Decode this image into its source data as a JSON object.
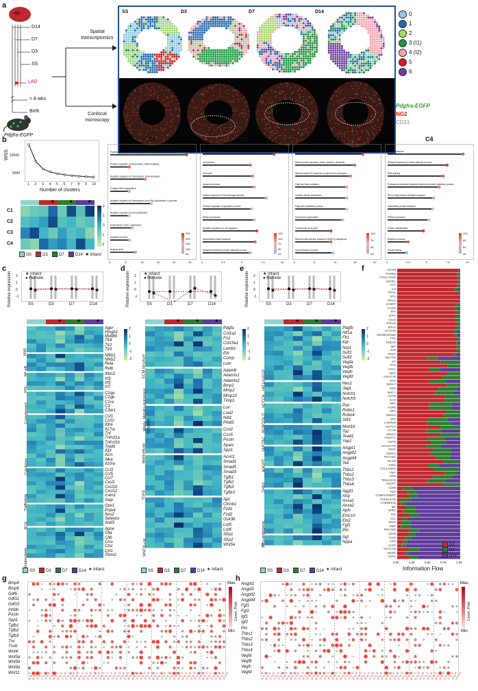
{
  "panel_letters": {
    "a": "a",
    "b": "b",
    "c": "c",
    "d": "d",
    "e": "e",
    "f": "f",
    "g": "g",
    "h": "h"
  },
  "panel_a": {
    "timeline": [
      "D14",
      "D7",
      "D3",
      "SS"
    ],
    "lad": "LAD",
    "gt8wks": "> 8 wks",
    "birth": "Birth",
    "mouse_label": "Pdgfra-EGFP",
    "arrow_top": "Spatial transcriptomics",
    "arrow_bottom": "Confocal microscopy",
    "timepoints": [
      "SS",
      "D3",
      "D7",
      "D14"
    ],
    "cluster_legend": [
      {
        "label": "0",
        "color": "#8ecae6"
      },
      {
        "label": "1",
        "color": "#2166ac"
      },
      {
        "label": "2",
        "color": "#a6d96a"
      },
      {
        "label": "3 (I1)",
        "color": "#1a9641"
      },
      {
        "label": "4 (I2)",
        "color": "#f4a5b0"
      },
      {
        "label": "5",
        "color": "#d7191c"
      },
      {
        "label": "6",
        "color": "#6a3d9a"
      }
    ],
    "stain_legend": [
      {
        "label": "Pdgfra-EGFP",
        "color": "#2ca02c"
      },
      {
        "label": "NG2",
        "color": "#e3120b"
      },
      {
        "label": "CD31",
        "color": "#aaaaaa"
      }
    ]
  },
  "panel_b": {
    "wss_ylabel": "WSS",
    "wss_xlabel": "Number of clusters",
    "wss_yticks": [
      "10000",
      "5000"
    ],
    "wss_xticks": [
      "1",
      "2",
      "3",
      "4",
      "5",
      "6",
      "7",
      "8",
      "9",
      "10"
    ],
    "heat_rows": [
      "C1",
      "C2",
      "C3",
      "C4"
    ],
    "heat_scale": [
      "2",
      "1",
      "0",
      "-1",
      "-2"
    ],
    "heat_legend": [
      "SS",
      "D3",
      "D7",
      "D14",
      "Infarct"
    ],
    "lollipop_titles": [
      "C1",
      "C2",
      "C3",
      "C4"
    ],
    "lollipop_terms": [
      [
        "Positive regulation of transcription from RNA polymerase II promoter",
        "Positive regulation of transcription, DNA-templated",
        "Negative regulation of transcription, DNA-templated",
        "Collagen fibril organization",
        "Negative regulation of transcription from RNA polymerase II promoter",
        "Negative regulation of cell proliferation",
        "Extracellular matrix organization",
        "Apoptotic process",
        "Angiogenesis"
      ],
      [
        "Protein transport",
        "Cell division",
        "Cell cycle",
        "Apoptotic process",
        "Cellular response to DNA damage stimulus",
        "Positive regulation of apoptotic process",
        "RRNA processing",
        "Negative regulation of cell migration",
        "Intracellular protein transport",
        "Ubiquitin-dependent protein catabolic process"
      ],
      [
        "Aerobic respiration",
        "Mitochondrial respiratory chain complex I assembly",
        "Mitochondrial ATP synthesis coupled proton transport",
        "Fatty acid beta-oxidation",
        "Cardiac muscle contraction",
        "Fatty acid metabolic process",
        "Sarcomere organization",
        "Tricarboxylic acid cycle",
        "Mitochondrial electron transport, NADH to ubiquinone",
        "Lipid metabolic process"
      ],
      [
        "Protein transport",
        "Ubiquitin-dependent protein catabolic process",
        "RNA splicing",
        "Proteasome-mediated ubiquitin-dependent protein catabolic process",
        "ER to Golgi vesicle-mediated transport",
        "Intracellular protein transport",
        "MRNA processing",
        "Protein ubiquitination",
        "Rhythmic process",
        "Protein folding"
      ]
    ],
    "lollipop_xticks": [
      [
        "0",
        "5",
        "10",
        "15",
        "20",
        "25"
      ],
      [
        "0",
        "2.5",
        "5",
        "7.5",
        "10"
      ],
      [
        "0",
        "5",
        "10",
        "15",
        "20"
      ],
      [
        "0",
        "2.5",
        "5",
        "7.5",
        "10"
      ]
    ],
    "lollipop_scales": [
      [
        "250",
        "200",
        "150",
        "100",
        "50"
      ],
      [
        "125",
        "100",
        "75",
        "50",
        "25"
      ],
      [
        "100",
        "75",
        "50",
        "25"
      ],
      [
        "120",
        "90",
        "60",
        "30"
      ]
    ]
  },
  "panel_c": {
    "ylabel": "Relative expression",
    "legend": [
      "Infarct",
      "Remote"
    ],
    "xticks": [
      "SS",
      "D3",
      "D7",
      "D14"
    ],
    "yticks": [
      "2",
      "1",
      "0",
      "-1"
    ],
    "groups": [
      {
        "name": "PRR",
        "genes": [
          "Ager",
          "Hmgb1",
          "Myd88",
          "Tlr4",
          "Tlr2",
          "Tlr9"
        ]
      },
      {
        "name": "NF-κB",
        "genes": [
          "Nfkb1",
          "Nfkb2",
          "Rela",
          "Relb"
        ]
      },
      {
        "name": "IFN",
        "genes": [
          "Ifitm3",
          "Irf3",
          "Irf5",
          "Irf7"
        ]
      },
      {
        "name": "Complement",
        "genes": [
          "C1qa",
          "C1qb",
          "C1ra",
          "C3",
          "C3ar1"
        ]
      },
      {
        "name": "Cytokines",
        "genes": [
          "Csf1",
          "Csf1r",
          "Il3ra",
          "Il17ra",
          "Tnf",
          "Tnfrsf1a",
          "Tnfrsf1b",
          "Tradd",
          "Il33",
          "Il1rn",
          "Il4ra",
          "Il10ra"
        ]
      },
      {
        "name": "Trafficking",
        "genes": [
          "Ccl3",
          "Ccl5",
          "Ccl7",
          "Cxcl1",
          "Cxcl10",
          "Cxcl12",
          "Icam1",
          "Selp"
        ]
      },
      {
        "name": "ROS",
        "genes": [
          "Gpx1",
          "Prdx4",
          "Nos2",
          "Selenos",
          "Sod3"
        ]
      },
      {
        "name": "Endocytosis",
        "genes": [
          "Apoe",
          "Clta",
          "Cltb",
          "Ctss",
          "Ctsc",
          "Lrp1",
          "Trem2"
        ]
      }
    ],
    "scale": [
      "2",
      "1",
      "0",
      "-1",
      "-2"
    ]
  },
  "panel_d": {
    "ylabel": "Relative expression",
    "legend": [
      "Infarct",
      "Remote"
    ],
    "xticks": [
      "SS",
      "D3",
      "D7",
      "D14"
    ],
    "yticks": [
      "2",
      "1",
      "0",
      "-1"
    ],
    "groups": [
      {
        "name": "ECM structure",
        "genes": [
          "Pdgfa",
          "Col1a1",
          "Fn1",
          "Col15a1",
          "Lamb1",
          "Eln",
          "Comp",
          "Lum"
        ]
      },
      {
        "name": "Metallo-proteinase",
        "genes": [
          "Adam8",
          "Adamts1",
          "Adamts2",
          "Bmp1",
          "Mmp2",
          "Mmp10",
          "Timp1"
        ]
      },
      {
        "name": "Matrix Crosslink",
        "genes": [
          "Lox",
          "Loxl2",
          "Nid1",
          "Plod3"
        ]
      },
      {
        "name": "Matricellular",
        "genes": [
          "Ccn2",
          "Ccn5",
          "Postn",
          "Sparc",
          "Spp1"
        ]
      },
      {
        "name": "TGFβ",
        "genes": [
          "Acvrl1",
          "Smad1",
          "Smad5",
          "Smad3",
          "Tgfb1",
          "Tgfb2",
          "Tgfb3",
          "Tgfbr2"
        ]
      },
      {
        "name": "WNT/β-cat",
        "genes": [
          "Apc",
          "Ctnnb1",
          "Fzd1",
          "Fzd2",
          "Gsk3b",
          "Lrp5",
          "Lrp6",
          "Sfrp1",
          "Sfrp2",
          "Wnt5a"
        ]
      }
    ],
    "scale": [
      "2",
      "1",
      "0",
      "-1",
      "-2"
    ]
  },
  "panel_e": {
    "ylabel": "Relative expression",
    "legend": [
      "Infarct",
      "Remote"
    ],
    "xticks": [
      "SS",
      "D3",
      "D7",
      "D14"
    ],
    "yticks": [
      "2",
      "1",
      "0",
      "-1"
    ],
    "groups": [
      {
        "name": "HIF1α/VEGF",
        "genes": [
          "Pdgfb",
          "Hif1a",
          "Flt1",
          "Kdr",
          "Nrp1",
          "Sulf1",
          "Sulf2",
          "Vegfa",
          "Vegfb",
          "Vegfc",
          "Vegfd"
        ]
      },
      {
        "name": "NOTCH",
        "genes": [
          "Hes1",
          "Jag1",
          "Notch1",
          "Notch3"
        ]
      },
      {
        "name": "ROBO/SLIT",
        "genes": [
          "Pxn",
          "Robo1",
          "Robo4",
          "Slit3"
        ]
      },
      {
        "name": "YAP/TAZ",
        "genes": [
          "Mob1b",
          "Taz",
          "Tead1",
          "Yap1"
        ]
      },
      {
        "name": "ANGPT",
        "genes": [
          "Angpt1",
          "Angptl2",
          "Angptl4",
          "Tek"
        ]
      },
      {
        "name": "THBS",
        "genes": [
          "Thbs1",
          "Thbs2",
          "Thbs3",
          "Thbs4"
        ]
      },
      {
        "name": "Pro-angiogenic",
        "genes": [
          "Aggf1",
          "Ang",
          "Anxa1",
          "Anxa2",
          "Apln",
          "Emc10",
          "Ets2",
          "Fgf1",
          "Ptn"
        ]
      },
      {
        "name": "BP",
        "genes": [
          "Agt",
          "Nppa"
        ]
      }
    ],
    "scale": [
      "2",
      "1",
      "0",
      "-1",
      "-2"
    ]
  },
  "panel_f": {
    "pathways": [
      "ESAM",
      "PTPRM",
      "ITGAL-ICAM",
      "ADGRL",
      "AGT",
      "IL6",
      "TRAIL",
      "NTS",
      "PROS",
      "ncWNT",
      "CADM",
      "TNF",
      "SPP1",
      "CD34",
      "APELIN",
      "EPHA",
      "ACTIVIN",
      "DESMOSOME",
      "FN1",
      "TWEAK",
      "MIF",
      "JAM",
      "PDGF",
      "NECTIN",
      "NT",
      "PTN",
      "CXCL",
      "WNT",
      "VISFATIN",
      "EGF",
      "SEMA7",
      "EDN",
      "MHC-I",
      "CDH5",
      "GAS",
      "NRG",
      "AGRN",
      "MPZ",
      "SEMA6",
      "APP",
      "LAMININ",
      "NOTCH",
      "VCAM",
      "SEMA3",
      "ANGPTL",
      "HSPG",
      "GALECTIN",
      "VEGF",
      "SEMA4",
      "PECAM1",
      "NCAM",
      "THBS",
      "COLLAGEN",
      "VWF",
      "GRN",
      "TENASCIN",
      "ANGPT",
      "CD99",
      "FGF",
      "COMPLEMENT",
      "PERIOSTIN",
      "CHEMERIN",
      "MK",
      "NPR2",
      "IGF",
      "CCL",
      "SELE",
      "BMP",
      "PECAM2",
      "CD45",
      "TGFb",
      "CDH",
      "CLDN",
      "CEACAM",
      "NEGR",
      "CDH1"
    ],
    "xlabel": "Information Flow",
    "xticks": [
      "0.00",
      "0.25",
      "0.50",
      "0.75",
      "1.00"
    ],
    "legend": [
      {
        "label": "D3",
        "color": "#c0282d"
      },
      {
        "label": "D7",
        "color": "#2e7d32"
      },
      {
        "label": "D14",
        "color": "#5e3c99"
      }
    ]
  },
  "panel_g": {
    "genes": [
      "Bmp4",
      "Bmp6",
      "Gdf6",
      "Gdf11",
      "Gdf15",
      "Inhbb",
      "Postn",
      "Spp1",
      "Tgfb1",
      "Tgfb2",
      "Tgfb3",
      "Tnc",
      "Tnxb",
      "Wnt4",
      "Wnt5a",
      "Wnt5b",
      "Wnt9a",
      "Wnt11"
    ],
    "max": "Max.",
    "min": "Min.",
    "cbar": "Comm. Prob."
  },
  "panel_h": {
    "genes": [
      "Angpt1",
      "Angpt2",
      "Angptl2",
      "Angptl4",
      "Fgf1",
      "Fgf2",
      "Igf1",
      "Igf2",
      "Ptn",
      "Thbs1",
      "Thbs2",
      "Thbs3",
      "Thbs4",
      "Vegfa",
      "Vegfb",
      "Vegfc",
      "Vegfd"
    ],
    "max": "Max.",
    "min": "Min.",
    "cbar": "Comm. Prob."
  },
  "bottom_legend": [
    "SS",
    "D3",
    "D7",
    "D14"
  ],
  "colors": {
    "ss": "#8fd3d0",
    "d3": "#c0282d",
    "d7": "#2e7d32",
    "d14": "#5e3c99",
    "frame": "#1f4e9c"
  }
}
